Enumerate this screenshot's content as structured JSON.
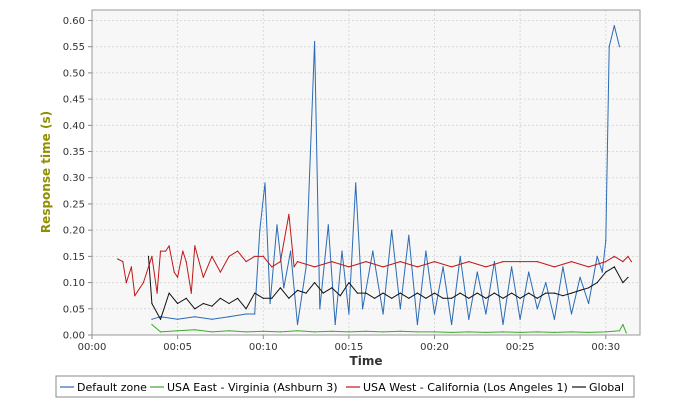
{
  "chart_data": {
    "type": "line",
    "title": "",
    "xlabel": "Time",
    "ylabel": "Response time (s)",
    "xlim": [
      "00:00",
      "00:32"
    ],
    "ylim": [
      0,
      0.62
    ],
    "x_ticks": [
      "00:00",
      "00:05",
      "00:10",
      "00:15",
      "00:20",
      "00:25",
      "00:30"
    ],
    "y_ticks": [
      "0.00",
      "0.05",
      "0.10",
      "0.15",
      "0.20",
      "0.25",
      "0.30",
      "0.35",
      "0.40",
      "0.45",
      "0.50",
      "0.55",
      "0.60"
    ],
    "grid": true,
    "legend_position": "bottom",
    "series": [
      {
        "name": "Default zone",
        "color": "#2b6bb5",
        "points": [
          [
            "00:03.5",
            0.03
          ],
          [
            "00:04.0",
            0.035
          ],
          [
            "00:05.0",
            0.03
          ],
          [
            "00:06.0",
            0.035
          ],
          [
            "00:07.0",
            0.03
          ],
          [
            "00:08.0",
            0.035
          ],
          [
            "00:09.0",
            0.04
          ],
          [
            "00:09.5",
            0.04
          ],
          [
            "00:09.8",
            0.2
          ],
          [
            "00:10.1",
            0.29
          ],
          [
            "00:10.4",
            0.06
          ],
          [
            "00:10.8",
            0.21
          ],
          [
            "00:11.2",
            0.09
          ],
          [
            "00:11.6",
            0.16
          ],
          [
            "00:12.0",
            0.02
          ],
          [
            "00:12.5",
            0.13
          ],
          [
            "00:13.0",
            0.56
          ],
          [
            "00:13.3",
            0.05
          ],
          [
            "00:13.8",
            0.21
          ],
          [
            "00:14.2",
            0.02
          ],
          [
            "00:14.6",
            0.16
          ],
          [
            "00:15.0",
            0.04
          ],
          [
            "00:15.4",
            0.29
          ],
          [
            "00:15.8",
            0.05
          ],
          [
            "00:16.4",
            0.16
          ],
          [
            "00:17.0",
            0.04
          ],
          [
            "00:17.5",
            0.2
          ],
          [
            "00:18.0",
            0.05
          ],
          [
            "00:18.5",
            0.19
          ],
          [
            "00:19.0",
            0.02
          ],
          [
            "00:19.5",
            0.16
          ],
          [
            "00:20.0",
            0.04
          ],
          [
            "00:20.5",
            0.13
          ],
          [
            "00:21.0",
            0.02
          ],
          [
            "00:21.5",
            0.15
          ],
          [
            "00:22.0",
            0.03
          ],
          [
            "00:22.5",
            0.12
          ],
          [
            "00:23.0",
            0.04
          ],
          [
            "00:23.5",
            0.14
          ],
          [
            "00:24.0",
            0.02
          ],
          [
            "00:24.5",
            0.13
          ],
          [
            "00:25.0",
            0.03
          ],
          [
            "00:25.5",
            0.12
          ],
          [
            "00:26.0",
            0.05
          ],
          [
            "00:26.5",
            0.1
          ],
          [
            "00:27.0",
            0.03
          ],
          [
            "00:27.5",
            0.13
          ],
          [
            "00:28.0",
            0.04
          ],
          [
            "00:28.5",
            0.11
          ],
          [
            "00:29.0",
            0.06
          ],
          [
            "00:29.5",
            0.15
          ],
          [
            "00:29.8",
            0.12
          ],
          [
            "00:30.0",
            0.18
          ],
          [
            "00:30.2",
            0.55
          ],
          [
            "00:30.5",
            0.59
          ],
          [
            "00:30.8",
            0.55
          ]
        ]
      },
      {
        "name": "USA East - Virginia (Ashburn 3)",
        "color": "#3cab2a",
        "points": [
          [
            "00:03.5",
            0.02
          ],
          [
            "00:04.0",
            0.006
          ],
          [
            "00:05.0",
            0.008
          ],
          [
            "00:06.0",
            0.01
          ],
          [
            "00:07.0",
            0.006
          ],
          [
            "00:08.0",
            0.008
          ],
          [
            "00:09.0",
            0.006
          ],
          [
            "00:10.0",
            0.007
          ],
          [
            "00:11.0",
            0.006
          ],
          [
            "00:12.0",
            0.008
          ],
          [
            "00:13.0",
            0.006
          ],
          [
            "00:14.0",
            0.007
          ],
          [
            "00:15.0",
            0.006
          ],
          [
            "00:16.0",
            0.007
          ],
          [
            "00:17.0",
            0.006
          ],
          [
            "00:18.0",
            0.007
          ],
          [
            "00:19.0",
            0.006
          ],
          [
            "00:20.0",
            0.006
          ],
          [
            "00:21.0",
            0.005
          ],
          [
            "00:22.0",
            0.006
          ],
          [
            "00:23.0",
            0.005
          ],
          [
            "00:24.0",
            0.006
          ],
          [
            "00:25.0",
            0.005
          ],
          [
            "00:26.0",
            0.006
          ],
          [
            "00:27.0",
            0.005
          ],
          [
            "00:28.0",
            0.006
          ],
          [
            "00:29.0",
            0.005
          ],
          [
            "00:30.0",
            0.006
          ],
          [
            "00:30.8",
            0.008
          ],
          [
            "00:31.0",
            0.02
          ],
          [
            "00:31.2",
            0.004
          ]
        ]
      },
      {
        "name": "USA West - California (Los Angeles 1)",
        "color": "#c01818",
        "points": [
          [
            "00:01.5",
            0.145
          ],
          [
            "00:01.8",
            0.14
          ],
          [
            "00:02.0",
            0.1
          ],
          [
            "00:02.3",
            0.13
          ],
          [
            "00:02.5",
            0.075
          ],
          [
            "00:03.0",
            0.1
          ],
          [
            "00:03.5",
            0.15
          ],
          [
            "00:03.8",
            0.08
          ],
          [
            "00:04.0",
            0.16
          ],
          [
            "00:04.3",
            0.16
          ],
          [
            "00:04.5",
            0.17
          ],
          [
            "00:04.8",
            0.12
          ],
          [
            "00:05.0",
            0.11
          ],
          [
            "00:05.3",
            0.16
          ],
          [
            "00:05.5",
            0.14
          ],
          [
            "00:05.8",
            0.08
          ],
          [
            "00:06.0",
            0.17
          ],
          [
            "00:06.5",
            0.11
          ],
          [
            "00:07.0",
            0.15
          ],
          [
            "00:07.5",
            0.12
          ],
          [
            "00:08.0",
            0.15
          ],
          [
            "00:08.5",
            0.16
          ],
          [
            "00:09.0",
            0.14
          ],
          [
            "00:09.5",
            0.15
          ],
          [
            "00:10.0",
            0.15
          ],
          [
            "00:10.5",
            0.13
          ],
          [
            "00:11.0",
            0.14
          ],
          [
            "00:11.5",
            0.23
          ],
          [
            "00:11.8",
            0.13
          ],
          [
            "00:12.0",
            0.14
          ],
          [
            "00:13.0",
            0.13
          ],
          [
            "00:14.0",
            0.14
          ],
          [
            "00:15.0",
            0.13
          ],
          [
            "00:16.0",
            0.14
          ],
          [
            "00:17.0",
            0.13
          ],
          [
            "00:18.0",
            0.14
          ],
          [
            "00:19.0",
            0.13
          ],
          [
            "00:20.0",
            0.14
          ],
          [
            "00:21.0",
            0.13
          ],
          [
            "00:22.0",
            0.14
          ],
          [
            "00:23.0",
            0.13
          ],
          [
            "00:24.0",
            0.14
          ],
          [
            "00:25.0",
            0.14
          ],
          [
            "00:26.0",
            0.14
          ],
          [
            "00:27.0",
            0.13
          ],
          [
            "00:28.0",
            0.14
          ],
          [
            "00:29.0",
            0.13
          ],
          [
            "00:30.0",
            0.14
          ],
          [
            "00:30.5",
            0.15
          ],
          [
            "00:31.0",
            0.14
          ],
          [
            "00:31.3",
            0.15
          ],
          [
            "00:31.5",
            0.14
          ]
        ]
      },
      {
        "name": "Global",
        "color": "#111111",
        "points": [
          [
            "00:03.3",
            0.15
          ],
          [
            "00:03.5",
            0.06
          ],
          [
            "00:04.0",
            0.03
          ],
          [
            "00:04.5",
            0.08
          ],
          [
            "00:05.0",
            0.06
          ],
          [
            "00:05.5",
            0.07
          ],
          [
            "00:06.0",
            0.05
          ],
          [
            "00:06.5",
            0.06
          ],
          [
            "00:07.0",
            0.055
          ],
          [
            "00:07.5",
            0.07
          ],
          [
            "00:08.0",
            0.06
          ],
          [
            "00:08.5",
            0.07
          ],
          [
            "00:09.0",
            0.05
          ],
          [
            "00:09.5",
            0.08
          ],
          [
            "00:10.0",
            0.07
          ],
          [
            "00:10.5",
            0.07
          ],
          [
            "00:11.0",
            0.09
          ],
          [
            "00:11.5",
            0.07
          ],
          [
            "00:12.0",
            0.085
          ],
          [
            "00:12.5",
            0.08
          ],
          [
            "00:13.0",
            0.1
          ],
          [
            "00:13.5",
            0.08
          ],
          [
            "00:14.0",
            0.09
          ],
          [
            "00:14.5",
            0.075
          ],
          [
            "00:15.0",
            0.1
          ],
          [
            "00:15.5",
            0.08
          ],
          [
            "00:16.0",
            0.08
          ],
          [
            "00:16.5",
            0.07
          ],
          [
            "00:17.0",
            0.08
          ],
          [
            "00:17.5",
            0.07
          ],
          [
            "00:18.0",
            0.08
          ],
          [
            "00:18.5",
            0.07
          ],
          [
            "00:19.0",
            0.08
          ],
          [
            "00:19.5",
            0.07
          ],
          [
            "00:20.0",
            0.08
          ],
          [
            "00:20.5",
            0.07
          ],
          [
            "00:21.0",
            0.07
          ],
          [
            "00:21.5",
            0.08
          ],
          [
            "00:22.0",
            0.07
          ],
          [
            "00:22.5",
            0.08
          ],
          [
            "00:23.0",
            0.07
          ],
          [
            "00:23.5",
            0.08
          ],
          [
            "00:24.0",
            0.07
          ],
          [
            "00:24.5",
            0.08
          ],
          [
            "00:25.0",
            0.07
          ],
          [
            "00:25.5",
            0.08
          ],
          [
            "00:26.0",
            0.07
          ],
          [
            "00:26.5",
            0.08
          ],
          [
            "00:27.0",
            0.08
          ],
          [
            "00:27.5",
            0.075
          ],
          [
            "00:28.0",
            0.08
          ],
          [
            "00:28.5",
            0.085
          ],
          [
            "00:29.0",
            0.09
          ],
          [
            "00:29.5",
            0.1
          ],
          [
            "00:30.0",
            0.12
          ],
          [
            "00:30.5",
            0.13
          ],
          [
            "00:31.0",
            0.1
          ],
          [
            "00:31.3",
            0.11
          ]
        ]
      }
    ]
  }
}
